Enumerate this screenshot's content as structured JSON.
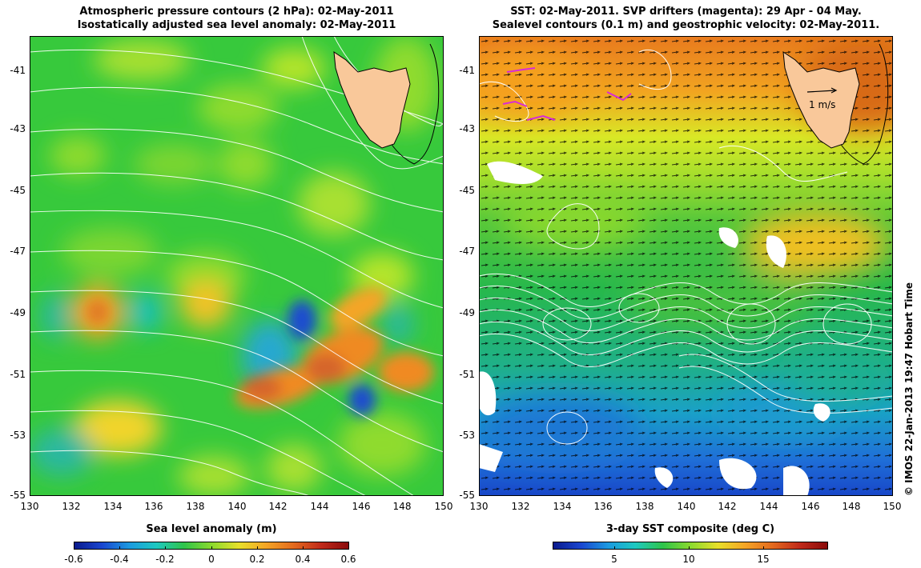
{
  "left": {
    "title_line1": "Atmospheric pressure contours (2 hPa): 02-May-2011",
    "title_line2": "Isostatically adjusted sea level anomaly: 02-May-2011",
    "colorbar_title": "Sea level anomaly (m)",
    "colorbar_ticks": [
      "-0.6",
      "-0.4",
      "-0.2",
      "0",
      "0.2",
      "0.4",
      "0.6"
    ],
    "colorbar_range": [
      -0.6,
      0.6
    ]
  },
  "right": {
    "title_line1": "SST: 02-May-2011. SVP drifters (magenta): 29 Apr - 04 May.",
    "title_line2": "Sealevel contours (0.1 m) and geostrophic velocity: 02-May-2011.",
    "colorbar_title": "3-day SST composite (deg C)",
    "colorbar_ticks": [
      "5",
      "10",
      "15"
    ],
    "colorbar_range": [
      1,
      19.5
    ],
    "velocity_scale_label": "1 m/s"
  },
  "axes": {
    "lon_ticks": [
      "130",
      "132",
      "134",
      "136",
      "138",
      "140",
      "142",
      "144",
      "146",
      "148",
      "150"
    ],
    "lat_ticks": [
      "-41",
      "-43",
      "-45",
      "-47",
      "-49",
      "-51",
      "-53",
      "-55"
    ],
    "lon_range": [
      130,
      150
    ],
    "lat_range": [
      -55,
      -40
    ]
  },
  "credit": "© IMOS 22-Jan-2013 19:47 Hobart Time",
  "colors": {
    "land": "#f9c89a",
    "coast": "#000000",
    "contour": "#ffffff"
  }
}
